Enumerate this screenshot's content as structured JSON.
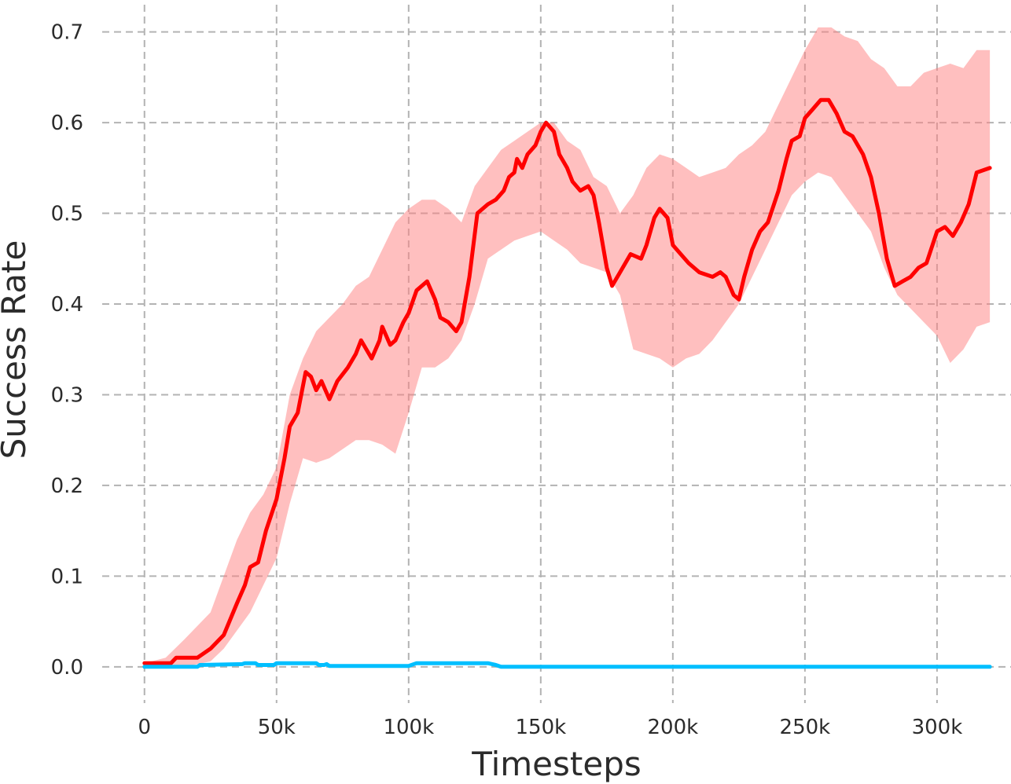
{
  "chart_data": {
    "type": "line",
    "xlabel": "Timesteps",
    "ylabel": "Success Rate",
    "xlim": [
      -16000,
      328000
    ],
    "ylim": [
      -0.04,
      0.73
    ],
    "grid": true,
    "x_ticks": [
      0,
      50000,
      100000,
      150000,
      200000,
      250000,
      300000
    ],
    "x_tick_labels": [
      "0",
      "50k",
      "100k",
      "150k",
      "200k",
      "250k",
      "300k"
    ],
    "y_ticks": [
      0.0,
      0.1,
      0.2,
      0.3,
      0.4,
      0.5,
      0.6,
      0.7
    ],
    "y_tick_labels": [
      "0.0",
      "0.1",
      "0.2",
      "0.3",
      "0.4",
      "0.5",
      "0.6",
      "0.7"
    ],
    "series": [
      {
        "color": "#ff0000",
        "band_color": "#ff8080",
        "band_opacity": 0.5,
        "points": [
          [
            0,
            0.004
          ],
          [
            10000,
            0.004
          ],
          [
            12000,
            0.01
          ],
          [
            20000,
            0.01
          ],
          [
            25000,
            0.02
          ],
          [
            30000,
            0.035
          ],
          [
            35000,
            0.07
          ],
          [
            38000,
            0.09
          ],
          [
            40000,
            0.11
          ],
          [
            43000,
            0.115
          ],
          [
            46000,
            0.15
          ],
          [
            50000,
            0.185
          ],
          [
            53000,
            0.23
          ],
          [
            55000,
            0.265
          ],
          [
            58000,
            0.28
          ],
          [
            61000,
            0.325
          ],
          [
            63000,
            0.32
          ],
          [
            65000,
            0.305
          ],
          [
            67000,
            0.315
          ],
          [
            70000,
            0.295
          ],
          [
            73000,
            0.315
          ],
          [
            77000,
            0.33
          ],
          [
            80000,
            0.345
          ],
          [
            82000,
            0.36
          ],
          [
            84000,
            0.35
          ],
          [
            86000,
            0.34
          ],
          [
            89000,
            0.36
          ],
          [
            90000,
            0.375
          ],
          [
            93000,
            0.355
          ],
          [
            95000,
            0.36
          ],
          [
            98000,
            0.38
          ],
          [
            100000,
            0.39
          ],
          [
            103000,
            0.415
          ],
          [
            105000,
            0.42
          ],
          [
            107000,
            0.425
          ],
          [
            110000,
            0.405
          ],
          [
            112000,
            0.385
          ],
          [
            115000,
            0.38
          ],
          [
            118000,
            0.37
          ],
          [
            120000,
            0.38
          ],
          [
            123000,
            0.43
          ],
          [
            126000,
            0.5
          ],
          [
            130000,
            0.51
          ],
          [
            133000,
            0.515
          ],
          [
            136000,
            0.525
          ],
          [
            138000,
            0.54
          ],
          [
            140000,
            0.545
          ],
          [
            141000,
            0.56
          ],
          [
            143000,
            0.55
          ],
          [
            145000,
            0.565
          ],
          [
            148000,
            0.575
          ],
          [
            150000,
            0.59
          ],
          [
            152000,
            0.6
          ],
          [
            155000,
            0.59
          ],
          [
            157000,
            0.565
          ],
          [
            160000,
            0.55
          ],
          [
            162000,
            0.535
          ],
          [
            165000,
            0.525
          ],
          [
            168000,
            0.53
          ],
          [
            170000,
            0.52
          ],
          [
            172000,
            0.49
          ],
          [
            175000,
            0.44
          ],
          [
            177000,
            0.42
          ],
          [
            180000,
            0.435
          ],
          [
            184000,
            0.455
          ],
          [
            188000,
            0.45
          ],
          [
            190000,
            0.465
          ],
          [
            193000,
            0.495
          ],
          [
            195000,
            0.505
          ],
          [
            198000,
            0.495
          ],
          [
            200000,
            0.465
          ],
          [
            203000,
            0.455
          ],
          [
            206000,
            0.445
          ],
          [
            210000,
            0.435
          ],
          [
            215000,
            0.43
          ],
          [
            218000,
            0.435
          ],
          [
            220000,
            0.43
          ],
          [
            223000,
            0.41
          ],
          [
            225000,
            0.405
          ],
          [
            227000,
            0.43
          ],
          [
            230000,
            0.46
          ],
          [
            233000,
            0.48
          ],
          [
            236000,
            0.49
          ],
          [
            240000,
            0.525
          ],
          [
            243000,
            0.56
          ],
          [
            245000,
            0.58
          ],
          [
            248000,
            0.585
          ],
          [
            250000,
            0.605
          ],
          [
            253000,
            0.615
          ],
          [
            256000,
            0.625
          ],
          [
            259000,
            0.625
          ],
          [
            262000,
            0.61
          ],
          [
            265000,
            0.59
          ],
          [
            268000,
            0.585
          ],
          [
            272000,
            0.565
          ],
          [
            275000,
            0.54
          ],
          [
            278000,
            0.5
          ],
          [
            281000,
            0.45
          ],
          [
            284000,
            0.42
          ],
          [
            287000,
            0.425
          ],
          [
            290000,
            0.43
          ],
          [
            293000,
            0.44
          ],
          [
            296000,
            0.445
          ],
          [
            300000,
            0.48
          ],
          [
            303000,
            0.485
          ],
          [
            306000,
            0.475
          ],
          [
            309000,
            0.49
          ],
          [
            312000,
            0.51
          ],
          [
            315000,
            0.545
          ],
          [
            320000,
            0.55
          ]
        ],
        "band_upper": [
          [
            0,
            0.004
          ],
          [
            8000,
            0.01
          ],
          [
            15000,
            0.03
          ],
          [
            20000,
            0.045
          ],
          [
            25000,
            0.06
          ],
          [
            30000,
            0.1
          ],
          [
            35000,
            0.14
          ],
          [
            40000,
            0.17
          ],
          [
            45000,
            0.19
          ],
          [
            50000,
            0.22
          ],
          [
            55000,
            0.3
          ],
          [
            60000,
            0.34
          ],
          [
            65000,
            0.37
          ],
          [
            70000,
            0.385
          ],
          [
            75000,
            0.4
          ],
          [
            80000,
            0.42
          ],
          [
            85000,
            0.43
          ],
          [
            90000,
            0.46
          ],
          [
            95000,
            0.49
          ],
          [
            100000,
            0.505
          ],
          [
            105000,
            0.515
          ],
          [
            110000,
            0.515
          ],
          [
            115000,
            0.505
          ],
          [
            120000,
            0.49
          ],
          [
            125000,
            0.53
          ],
          [
            130000,
            0.55
          ],
          [
            135000,
            0.57
          ],
          [
            140000,
            0.58
          ],
          [
            145000,
            0.59
          ],
          [
            150000,
            0.6
          ],
          [
            155000,
            0.6
          ],
          [
            160000,
            0.58
          ],
          [
            165000,
            0.57
          ],
          [
            170000,
            0.54
          ],
          [
            175000,
            0.53
          ],
          [
            180000,
            0.5
          ],
          [
            185000,
            0.52
          ],
          [
            190000,
            0.55
          ],
          [
            195000,
            0.565
          ],
          [
            200000,
            0.56
          ],
          [
            205000,
            0.55
          ],
          [
            210000,
            0.54
          ],
          [
            215000,
            0.545
          ],
          [
            220000,
            0.55
          ],
          [
            225000,
            0.565
          ],
          [
            230000,
            0.575
          ],
          [
            235000,
            0.59
          ],
          [
            240000,
            0.62
          ],
          [
            245000,
            0.65
          ],
          [
            250000,
            0.68
          ],
          [
            255000,
            0.705
          ],
          [
            260000,
            0.705
          ],
          [
            265000,
            0.695
          ],
          [
            270000,
            0.69
          ],
          [
            275000,
            0.67
          ],
          [
            280000,
            0.66
          ],
          [
            285000,
            0.64
          ],
          [
            290000,
            0.64
          ],
          [
            295000,
            0.655
          ],
          [
            300000,
            0.66
          ],
          [
            305000,
            0.665
          ],
          [
            310000,
            0.66
          ],
          [
            315000,
            0.68
          ],
          [
            320000,
            0.68
          ]
        ],
        "band_lower": [
          [
            0,
            0.0
          ],
          [
            8000,
            0.0
          ],
          [
            15000,
            0.0
          ],
          [
            20000,
            0.003
          ],
          [
            25000,
            0.006
          ],
          [
            30000,
            0.02
          ],
          [
            35000,
            0.04
          ],
          [
            40000,
            0.06
          ],
          [
            45000,
            0.09
          ],
          [
            50000,
            0.12
          ],
          [
            55000,
            0.18
          ],
          [
            60000,
            0.23
          ],
          [
            65000,
            0.225
          ],
          [
            70000,
            0.23
          ],
          [
            75000,
            0.24
          ],
          [
            80000,
            0.25
          ],
          [
            85000,
            0.25
          ],
          [
            90000,
            0.245
          ],
          [
            95000,
            0.235
          ],
          [
            100000,
            0.28
          ],
          [
            105000,
            0.33
          ],
          [
            110000,
            0.33
          ],
          [
            115000,
            0.34
          ],
          [
            120000,
            0.36
          ],
          [
            125000,
            0.4
          ],
          [
            130000,
            0.45
          ],
          [
            135000,
            0.46
          ],
          [
            140000,
            0.47
          ],
          [
            145000,
            0.475
          ],
          [
            150000,
            0.48
          ],
          [
            155000,
            0.47
          ],
          [
            160000,
            0.46
          ],
          [
            165000,
            0.445
          ],
          [
            170000,
            0.44
          ],
          [
            175000,
            0.435
          ],
          [
            180000,
            0.41
          ],
          [
            185000,
            0.35
          ],
          [
            190000,
            0.345
          ],
          [
            195000,
            0.34
          ],
          [
            200000,
            0.33
          ],
          [
            205000,
            0.34
          ],
          [
            210000,
            0.345
          ],
          [
            215000,
            0.36
          ],
          [
            220000,
            0.38
          ],
          [
            225000,
            0.4
          ],
          [
            230000,
            0.43
          ],
          [
            235000,
            0.46
          ],
          [
            240000,
            0.49
          ],
          [
            245000,
            0.52
          ],
          [
            250000,
            0.535
          ],
          [
            255000,
            0.545
          ],
          [
            260000,
            0.54
          ],
          [
            265000,
            0.52
          ],
          [
            270000,
            0.5
          ],
          [
            275000,
            0.48
          ],
          [
            280000,
            0.44
          ],
          [
            285000,
            0.41
          ],
          [
            290000,
            0.395
          ],
          [
            295000,
            0.38
          ],
          [
            300000,
            0.365
          ],
          [
            305000,
            0.335
          ],
          [
            310000,
            0.35
          ],
          [
            315000,
            0.375
          ],
          [
            320000,
            0.38
          ]
        ]
      },
      {
        "color": "#00bfff",
        "points": [
          [
            0,
            0.0
          ],
          [
            20000,
            0.0
          ],
          [
            21000,
            0.002
          ],
          [
            37000,
            0.003
          ],
          [
            38000,
            0.004
          ],
          [
            42000,
            0.004
          ],
          [
            43000,
            0.002
          ],
          [
            49000,
            0.002
          ],
          [
            50000,
            0.004
          ],
          [
            65000,
            0.004
          ],
          [
            66000,
            0.002
          ],
          [
            68000,
            0.002
          ],
          [
            69000,
            0.003
          ],
          [
            70000,
            0.001
          ],
          [
            100000,
            0.001
          ],
          [
            103000,
            0.004
          ],
          [
            130000,
            0.004
          ],
          [
            133000,
            0.002
          ],
          [
            135000,
            0.0
          ],
          [
            320000,
            0.0
          ]
        ]
      }
    ]
  }
}
